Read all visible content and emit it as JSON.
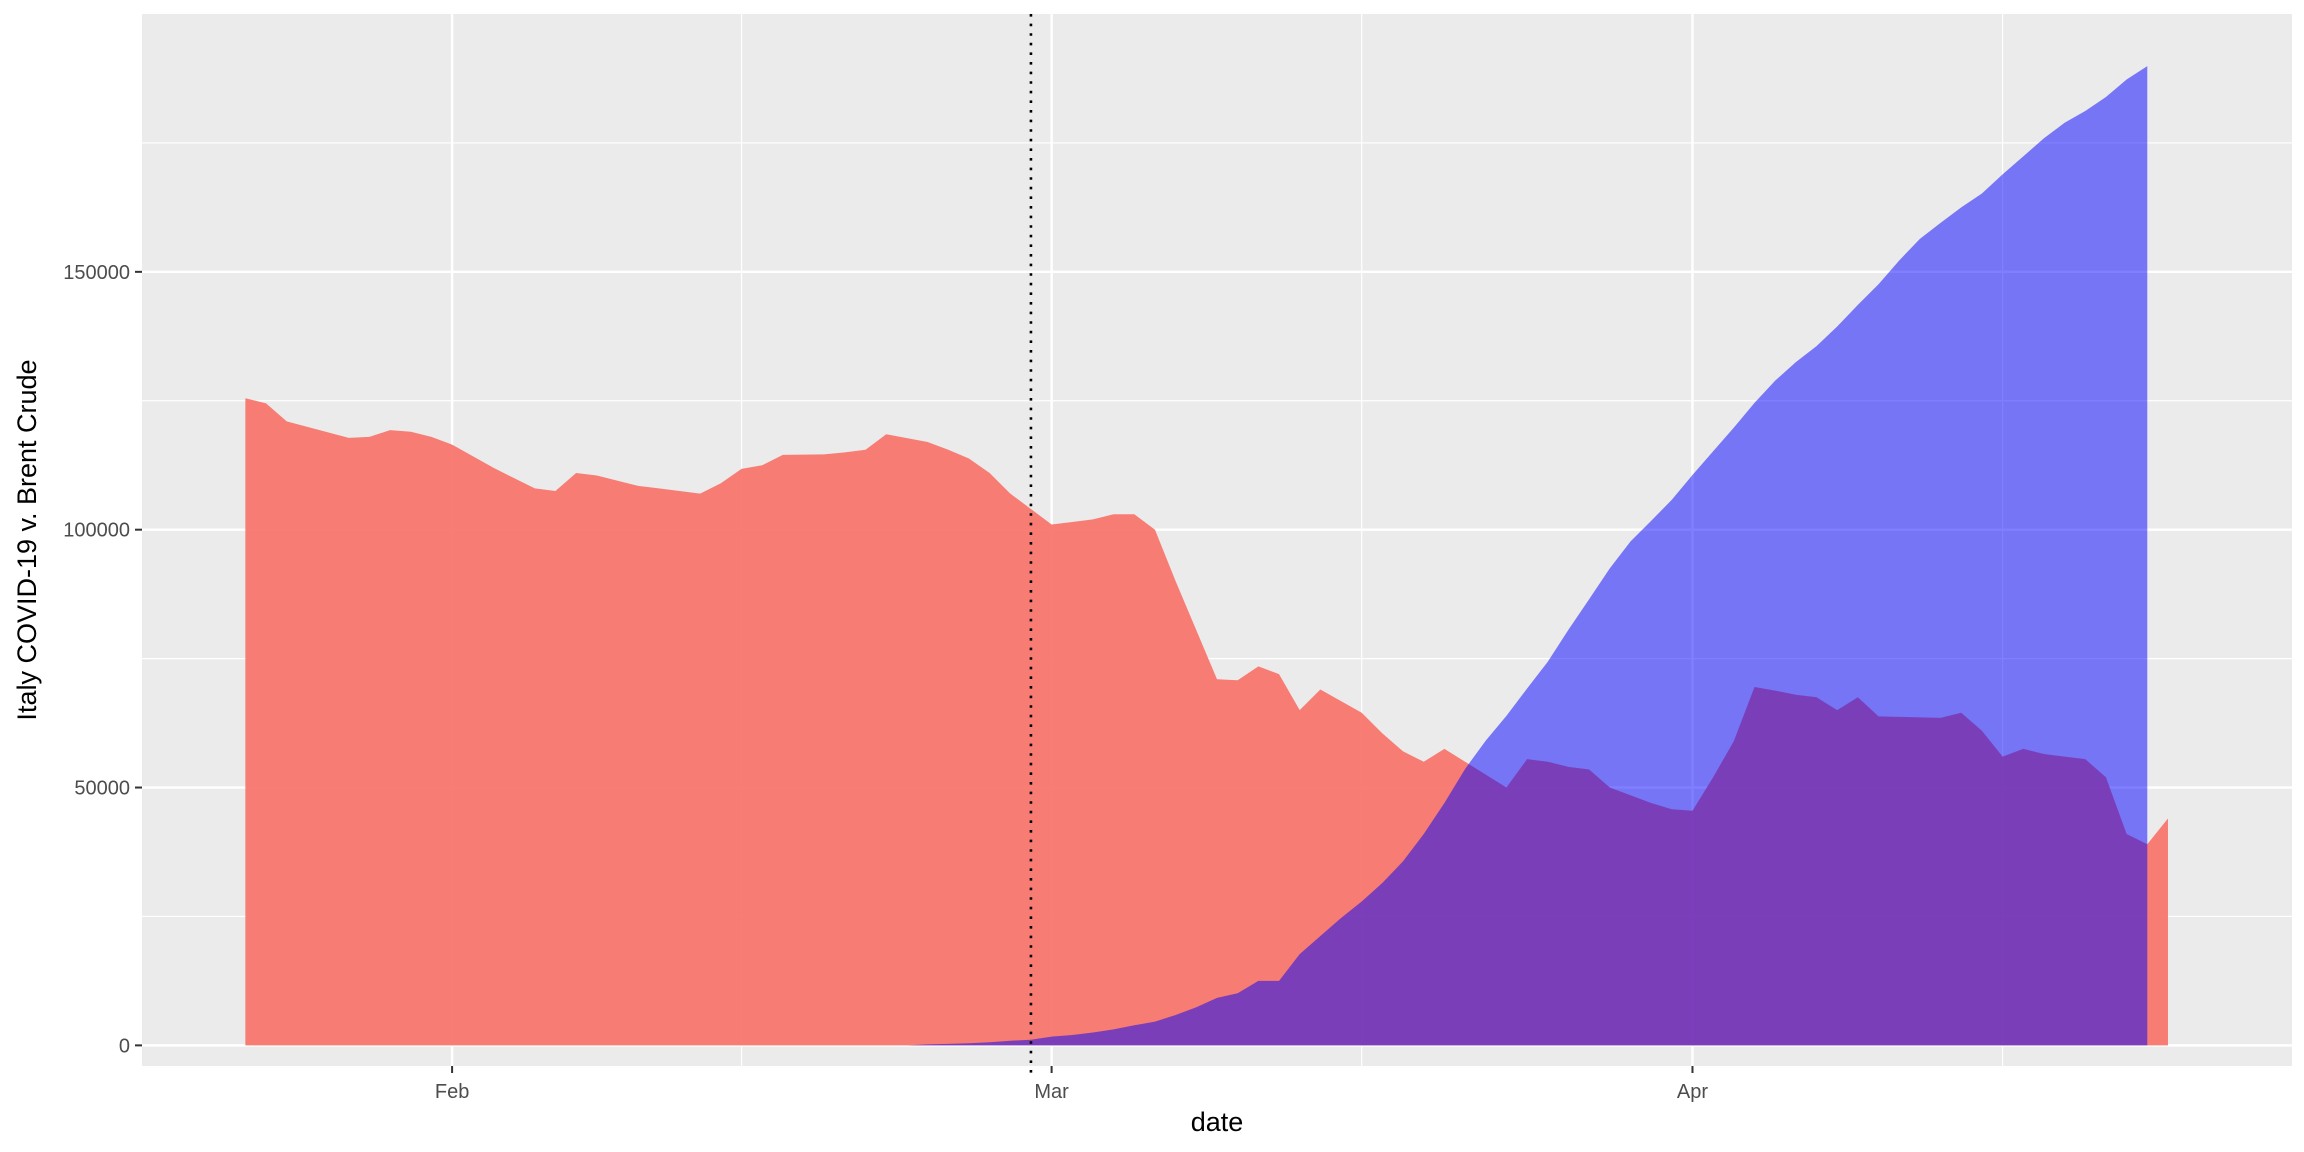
{
  "chart_data": {
    "type": "area",
    "title": "",
    "xlabel": "date",
    "ylabel": "Italy COVID-19 v. Brent Crude",
    "x_range": [
      "2020-01-17",
      "2020-04-30"
    ],
    "ylim": [
      -4000,
      200000
    ],
    "y_ticks": [
      0,
      50000,
      100000,
      150000
    ],
    "y_tick_labels": [
      "0",
      "50000",
      "100000",
      "150000"
    ],
    "x_ticks": [
      {
        "date": "2020-02-01",
        "label": "Feb"
      },
      {
        "date": "2020-03-01",
        "label": "Mar"
      },
      {
        "date": "2020-04-01",
        "label": "Apr"
      }
    ],
    "x_minor_ticks": [
      "2020-01-16",
      "2020-02-15",
      "2020-03-16",
      "2020-04-16"
    ],
    "grid": true,
    "legend": "none",
    "vline": {
      "date": "2020-02-29",
      "style": "dotted"
    },
    "series": [
      {
        "color": "#f8766d",
        "opacity": 0.95,
        "points": [
          [
            "2020-01-22",
            125500
          ],
          [
            "2020-01-23",
            124500
          ],
          [
            "2020-01-24",
            121000
          ],
          [
            "2020-01-27",
            117800
          ],
          [
            "2020-01-28",
            118000
          ],
          [
            "2020-01-29",
            119300
          ],
          [
            "2020-01-30",
            119000
          ],
          [
            "2020-01-31",
            118000
          ],
          [
            "2020-02-01",
            116500
          ],
          [
            "2020-02-03",
            112000
          ],
          [
            "2020-02-04",
            110000
          ],
          [
            "2020-02-05",
            108000
          ],
          [
            "2020-02-06",
            107500
          ],
          [
            "2020-02-07",
            111000
          ],
          [
            "2020-02-08",
            110500
          ],
          [
            "2020-02-10",
            108500
          ],
          [
            "2020-02-11",
            108000
          ],
          [
            "2020-02-12",
            107500
          ],
          [
            "2020-02-13",
            107000
          ],
          [
            "2020-02-14",
            109000
          ],
          [
            "2020-02-15",
            111800
          ],
          [
            "2020-02-16",
            112500
          ],
          [
            "2020-02-17",
            114500
          ],
          [
            "2020-02-19",
            114600
          ],
          [
            "2020-02-20",
            115000
          ],
          [
            "2020-02-21",
            115500
          ],
          [
            "2020-02-22",
            118500
          ],
          [
            "2020-02-24",
            117000
          ],
          [
            "2020-02-25",
            115500
          ],
          [
            "2020-02-26",
            113800
          ],
          [
            "2020-02-27",
            111000
          ],
          [
            "2020-02-28",
            107000
          ],
          [
            "2020-02-29",
            104000
          ],
          [
            "2020-03-01",
            101000
          ],
          [
            "2020-03-02",
            101500
          ],
          [
            "2020-03-03",
            102000
          ],
          [
            "2020-03-04",
            103000
          ],
          [
            "2020-03-05",
            103000
          ],
          [
            "2020-03-06",
            100000
          ],
          [
            "2020-03-07",
            90000
          ],
          [
            "2020-03-08",
            80500
          ],
          [
            "2020-03-09",
            71000
          ],
          [
            "2020-03-10",
            70800
          ],
          [
            "2020-03-11",
            73500
          ],
          [
            "2020-03-12",
            72000
          ],
          [
            "2020-03-13",
            65000
          ],
          [
            "2020-03-14",
            69000
          ],
          [
            "2020-03-16",
            64500
          ],
          [
            "2020-03-17",
            60500
          ],
          [
            "2020-03-18",
            57000
          ],
          [
            "2020-03-19",
            55000
          ],
          [
            "2020-03-20",
            57500
          ],
          [
            "2020-03-21",
            55000
          ],
          [
            "2020-03-22",
            52500
          ],
          [
            "2020-03-23",
            50000
          ],
          [
            "2020-03-24",
            55500
          ],
          [
            "2020-03-25",
            55000
          ],
          [
            "2020-03-26",
            54000
          ],
          [
            "2020-03-27",
            53500
          ],
          [
            "2020-03-28",
            50000
          ],
          [
            "2020-03-29",
            48500
          ],
          [
            "2020-03-30",
            47000
          ],
          [
            "2020-03-31",
            45800
          ],
          [
            "2020-04-01",
            45500
          ],
          [
            "2020-04-02",
            52000
          ],
          [
            "2020-04-03",
            59000
          ],
          [
            "2020-04-04",
            69500
          ],
          [
            "2020-04-05",
            68800
          ],
          [
            "2020-04-06",
            68000
          ],
          [
            "2020-04-07",
            67500
          ],
          [
            "2020-04-08",
            65000
          ],
          [
            "2020-04-09",
            67500
          ],
          [
            "2020-04-10",
            63800
          ],
          [
            "2020-04-11",
            63700
          ],
          [
            "2020-04-13",
            63500
          ],
          [
            "2020-04-14",
            64500
          ],
          [
            "2020-04-15",
            61000
          ],
          [
            "2020-04-16",
            56000
          ],
          [
            "2020-04-17",
            57500
          ],
          [
            "2020-04-18",
            56500
          ],
          [
            "2020-04-19",
            56000
          ],
          [
            "2020-04-20",
            55500
          ],
          [
            "2020-04-21",
            52000
          ],
          [
            "2020-04-22",
            41000
          ],
          [
            "2020-04-23",
            39000
          ],
          [
            "2020-04-24",
            44000
          ]
        ]
      },
      {
        "color": "#0000ff",
        "opacity": 0.5,
        "points": [
          [
            "2020-02-23",
            0
          ],
          [
            "2020-02-24",
            200
          ],
          [
            "2020-02-25",
            300
          ],
          [
            "2020-02-26",
            400
          ],
          [
            "2020-02-27",
            600
          ],
          [
            "2020-02-28",
            900
          ],
          [
            "2020-02-29",
            1100
          ],
          [
            "2020-03-01",
            1700
          ],
          [
            "2020-03-02",
            2000
          ],
          [
            "2020-03-03",
            2500
          ],
          [
            "2020-03-04",
            3100
          ],
          [
            "2020-03-05",
            3900
          ],
          [
            "2020-03-06",
            4600
          ],
          [
            "2020-03-07",
            5900
          ],
          [
            "2020-03-08",
            7400
          ],
          [
            "2020-03-09",
            9200
          ],
          [
            "2020-03-10",
            10100
          ],
          [
            "2020-03-11",
            12500
          ],
          [
            "2020-03-12",
            12500
          ],
          [
            "2020-03-13",
            17700
          ],
          [
            "2020-03-14",
            21200
          ],
          [
            "2020-03-15",
            24700
          ],
          [
            "2020-03-16",
            27900
          ],
          [
            "2020-03-17",
            31500
          ],
          [
            "2020-03-18",
            35700
          ],
          [
            "2020-03-19",
            41000
          ],
          [
            "2020-03-20",
            47000
          ],
          [
            "2020-03-21",
            53600
          ],
          [
            "2020-03-22",
            59100
          ],
          [
            "2020-03-23",
            63900
          ],
          [
            "2020-03-24",
            69200
          ],
          [
            "2020-03-25",
            74400
          ],
          [
            "2020-03-26",
            80600
          ],
          [
            "2020-03-27",
            86500
          ],
          [
            "2020-03-28",
            92500
          ],
          [
            "2020-03-29",
            97700
          ],
          [
            "2020-03-30",
            101700
          ],
          [
            "2020-03-31",
            105800
          ],
          [
            "2020-04-01",
            110600
          ],
          [
            "2020-04-02",
            115200
          ],
          [
            "2020-04-03",
            119800
          ],
          [
            "2020-04-04",
            124600
          ],
          [
            "2020-04-05",
            128900
          ],
          [
            "2020-04-06",
            132500
          ],
          [
            "2020-04-07",
            135600
          ],
          [
            "2020-04-08",
            139400
          ],
          [
            "2020-04-09",
            143600
          ],
          [
            "2020-04-10",
            147600
          ],
          [
            "2020-04-11",
            152200
          ],
          [
            "2020-04-12",
            156400
          ],
          [
            "2020-04-13",
            159500
          ],
          [
            "2020-04-14",
            162500
          ],
          [
            "2020-04-15",
            165200
          ],
          [
            "2020-04-16",
            168900
          ],
          [
            "2020-04-17",
            172400
          ],
          [
            "2020-04-18",
            175900
          ],
          [
            "2020-04-19",
            178900
          ],
          [
            "2020-04-20",
            181200
          ],
          [
            "2020-04-21",
            183900
          ],
          [
            "2020-04-22",
            187300
          ],
          [
            "2020-04-23",
            189900
          ]
        ]
      }
    ]
  }
}
